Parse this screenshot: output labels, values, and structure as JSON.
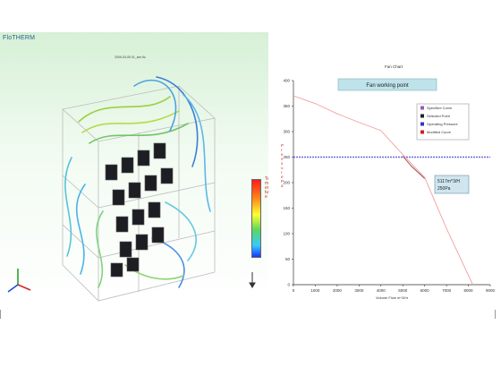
{
  "simulation": {
    "app_title": "FloTHERM",
    "file_label": "2009-03-05 01_sim.flo",
    "scale_label": "Temperature"
  },
  "chart_data": {
    "type": "line",
    "title": "Fan Chart",
    "xlabel": "Volume Flow m^3/hr",
    "ylabel": "Pressure Pa",
    "xlim": [
      0,
      9000
    ],
    "ylim": [
      0,
      400
    ],
    "x_ticks": [
      0,
      1000,
      2000,
      3000,
      4000,
      5000,
      6000,
      7000,
      8000,
      9000
    ],
    "y_ticks": [
      0,
      50,
      100,
      150,
      200,
      250,
      300,
      350,
      400
    ],
    "banner": "Fan working point",
    "legend": [
      "Specified Curve",
      "Selected Point",
      "Operating Pressure",
      "Modified Curve"
    ],
    "legend_colors": [
      "#9b59b6",
      "#222222",
      "#3333cc",
      "#cc2222"
    ],
    "series": [
      {
        "name": "Specified Curve",
        "color": "#f2a0a0",
        "x": [
          0,
          1000,
          2000,
          3000,
          4000,
          5000,
          6000,
          7000,
          8200
        ],
        "y": [
          370,
          355,
          335,
          318,
          302,
          255,
          210,
          110,
          0
        ]
      },
      {
        "name": "Modified Curve",
        "color": "#a0413c",
        "x": [
          5000,
          5400,
          6000
        ],
        "y": [
          252,
          232,
          208
        ]
      }
    ],
    "operating_pressure": 250,
    "annotation": {
      "line1": "5117m^3/H",
      "line2": "250Pa"
    }
  }
}
